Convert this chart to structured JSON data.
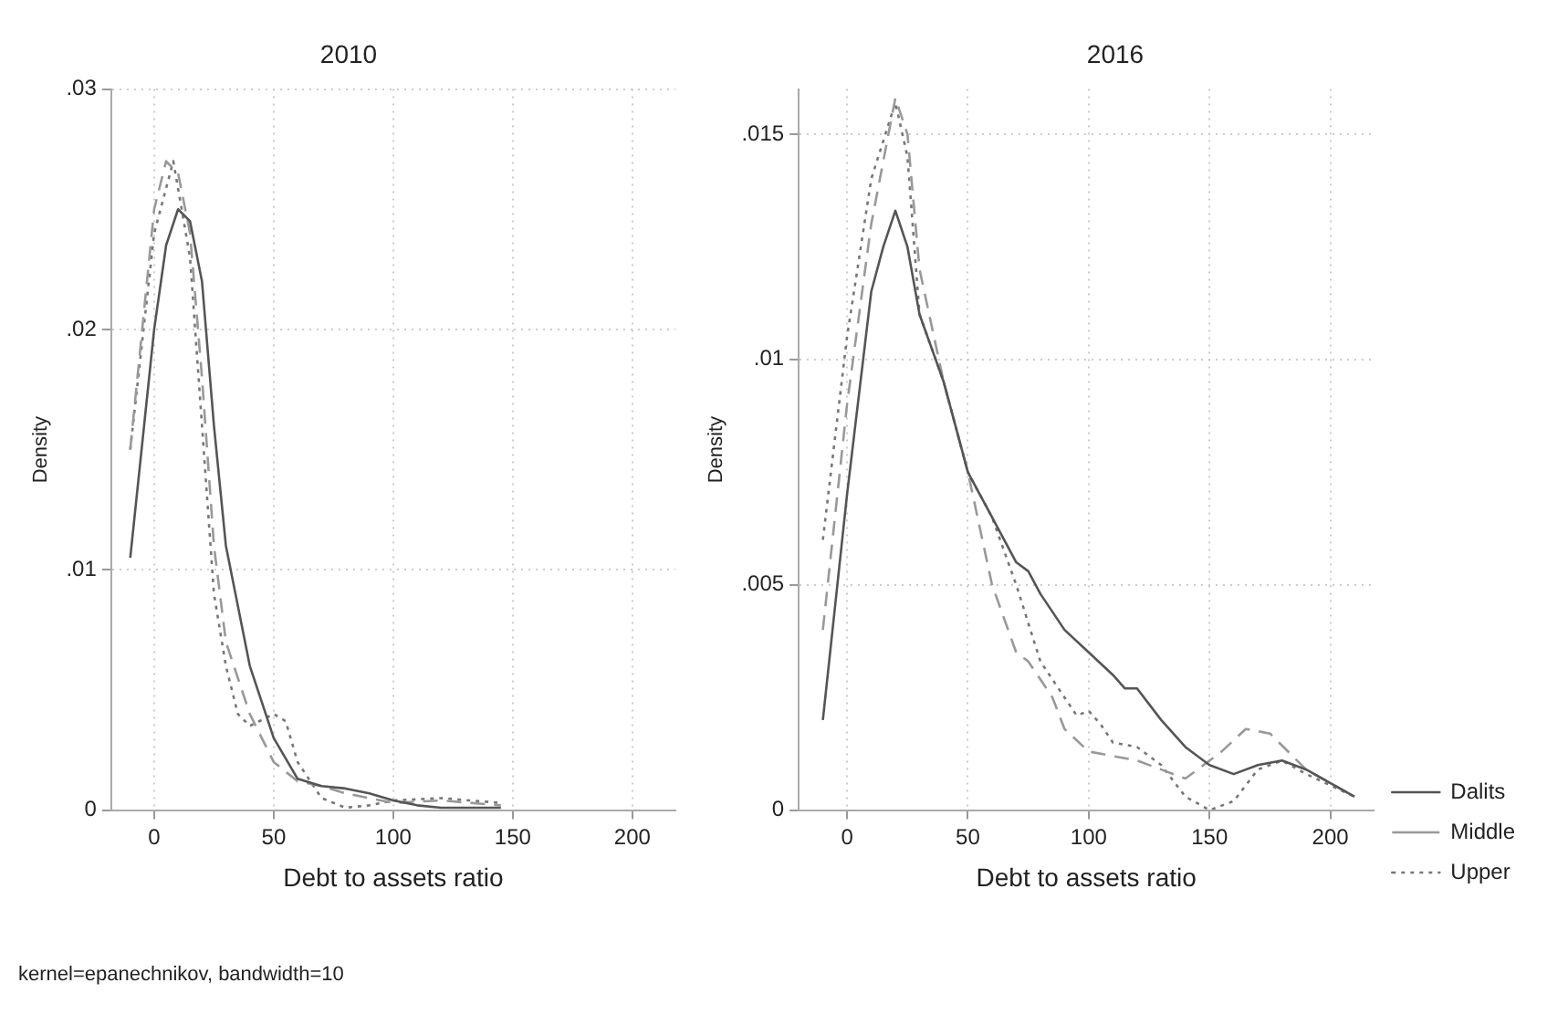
{
  "chart_data": [
    {
      "type": "line",
      "title": "2010",
      "xlabel": "Debt to assets ratio",
      "ylabel": "Density",
      "xlim": [
        -18,
        218
      ],
      "xticks": [
        0,
        50,
        100,
        150,
        200
      ],
      "ylim": [
        0,
        0.03
      ],
      "yticks": [
        {
          "value": 0,
          "label": "0"
        },
        {
          "value": 0.01,
          "label": ".01"
        },
        {
          "value": 0.02,
          "label": ".02"
        },
        {
          "value": 0.03,
          "label": ".03"
        }
      ],
      "grid": true,
      "legend": false,
      "annotations": [
        "kernel=epanechnikov, bandwidth=10"
      ],
      "series": [
        {
          "color": "#555555",
          "line_style": "solid",
          "x": [
            -10,
            0,
            5,
            10,
            15,
            20,
            25,
            30,
            40,
            50,
            60,
            70,
            80,
            90,
            100,
            110,
            120,
            145
          ],
          "values": [
            0.0105,
            0.02,
            0.0235,
            0.025,
            0.0245,
            0.022,
            0.016,
            0.011,
            0.006,
            0.003,
            0.0013,
            0.001,
            0.0009,
            0.0007,
            0.0004,
            0.0002,
            0.0001,
            0.0001
          ]
        },
        {
          "color": "#999999",
          "line_style": "dashed",
          "x": [
            -10,
            0,
            5,
            10,
            15,
            20,
            25,
            30,
            40,
            50,
            60,
            70,
            80,
            100,
            120,
            145
          ],
          "values": [
            0.015,
            0.025,
            0.027,
            0.0265,
            0.024,
            0.018,
            0.011,
            0.007,
            0.004,
            0.002,
            0.0012,
            0.001,
            0.0007,
            0.0003,
            0.0004,
            0.0002
          ]
        },
        {
          "color": "#777777",
          "line_style": "dotted",
          "x": [
            -10,
            0,
            8,
            15,
            20,
            25,
            30,
            35,
            40,
            50,
            55,
            60,
            70,
            80,
            90,
            100,
            120,
            145
          ],
          "values": [
            0.015,
            0.024,
            0.027,
            0.023,
            0.016,
            0.009,
            0.006,
            0.004,
            0.0035,
            0.004,
            0.0037,
            0.002,
            0.0005,
            0.0001,
            0.0002,
            0.0004,
            0.0005,
            0.0003
          ]
        }
      ]
    },
    {
      "type": "line",
      "title": "2016",
      "xlabel": "Debt to assets ratio",
      "ylabel": "Density",
      "xlim": [
        -20,
        218
      ],
      "xticks": [
        0,
        50,
        100,
        150,
        200
      ],
      "ylim": [
        0,
        0.016
      ],
      "yticks": [
        {
          "value": 0,
          "label": "0"
        },
        {
          "value": 0.005,
          "label": ".005"
        },
        {
          "value": 0.01,
          "label": ".01"
        },
        {
          "value": 0.015,
          "label": ".015"
        }
      ],
      "grid": true,
      "legend": "right",
      "series": [
        {
          "name": "Dalits",
          "color": "#555555",
          "line_style": "solid",
          "x": [
            -10,
            0,
            10,
            15,
            20,
            25,
            30,
            40,
            50,
            60,
            70,
            75,
            80,
            90,
            100,
            110,
            115,
            120,
            130,
            140,
            150,
            160,
            170,
            180,
            190,
            210
          ],
          "values": [
            0.002,
            0.007,
            0.0115,
            0.0125,
            0.0133,
            0.0125,
            0.011,
            0.0095,
            0.0075,
            0.0065,
            0.0055,
            0.0053,
            0.0048,
            0.004,
            0.0035,
            0.003,
            0.0027,
            0.0027,
            0.002,
            0.0014,
            0.001,
            0.0008,
            0.001,
            0.0011,
            0.0009,
            0.0003
          ]
        },
        {
          "name": "Middle",
          "color": "#999999",
          "line_style": "dashed",
          "x": [
            -10,
            0,
            10,
            20,
            25,
            30,
            40,
            50,
            60,
            70,
            75,
            85,
            90,
            100,
            120,
            140,
            155,
            165,
            175,
            190,
            210
          ],
          "values": [
            0.004,
            0.009,
            0.013,
            0.0158,
            0.015,
            0.012,
            0.0095,
            0.0075,
            0.005,
            0.0035,
            0.0033,
            0.0025,
            0.0018,
            0.0013,
            0.0011,
            0.0007,
            0.0013,
            0.0018,
            0.0017,
            0.0009,
            0.0003
          ]
        },
        {
          "name": "Upper",
          "color": "#777777",
          "line_style": "dotted",
          "x": [
            -10,
            0,
            10,
            20,
            25,
            30,
            40,
            50,
            60,
            70,
            80,
            90,
            95,
            100,
            105,
            110,
            120,
            130,
            140,
            150,
            160,
            170,
            180,
            190,
            210
          ],
          "values": [
            0.006,
            0.0105,
            0.014,
            0.0157,
            0.0145,
            0.011,
            0.0095,
            0.0075,
            0.0065,
            0.005,
            0.0033,
            0.0025,
            0.0021,
            0.0022,
            0.0019,
            0.0015,
            0.0014,
            0.001,
            0.0003,
            0,
            0.0002,
            0.0009,
            0.0011,
            0.0008,
            0.0003
          ]
        }
      ]
    }
  ]
}
